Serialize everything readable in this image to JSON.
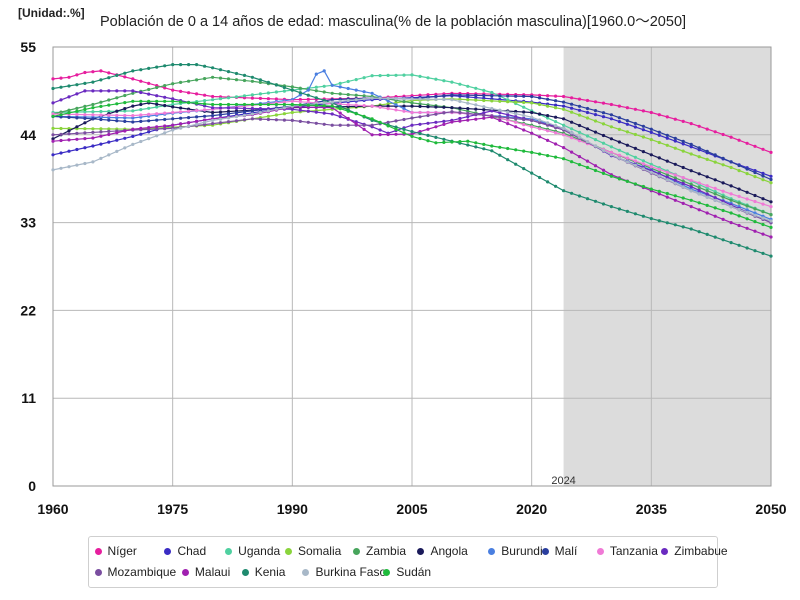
{
  "unit_label": "[Unidad:.%]",
  "title": "Población de 0 a 14 años de edad: masculina(% de la población masculina)[1960.0～2050]",
  "chart_data": {
    "type": "line",
    "xlim": [
      1960,
      2050
    ],
    "ylim": [
      0,
      55
    ],
    "x_ticks": [
      1960,
      1975,
      1990,
      2005,
      2020,
      2035,
      2050
    ],
    "y_ticks": [
      0,
      11,
      22,
      33,
      44,
      55
    ],
    "grid": true,
    "projection_start": 2024,
    "projection_label": "2024",
    "legend_position": "bottom",
    "series": [
      {
        "name": "Níger",
        "color": "#e61e9e",
        "points": [
          [
            1960,
            51
          ],
          [
            1962,
            51.2
          ],
          [
            1964,
            51.8
          ],
          [
            1966,
            52
          ],
          [
            1970,
            51
          ],
          [
            1975,
            49.6
          ],
          [
            1980,
            48.8
          ],
          [
            1990,
            48.4
          ],
          [
            2000,
            48.6
          ],
          [
            2005,
            48.9
          ],
          [
            2010,
            49.2
          ],
          [
            2020,
            49
          ],
          [
            2024,
            48.8
          ],
          [
            2030,
            47.8
          ],
          [
            2035,
            46.8
          ],
          [
            2040,
            45.4
          ],
          [
            2045,
            43.7
          ],
          [
            2050,
            41.8
          ]
        ]
      },
      {
        "name": "Chad",
        "color": "#3a2cc4",
        "points": [
          [
            1960,
            41.5
          ],
          [
            1965,
            42.6
          ],
          [
            1970,
            43.8
          ],
          [
            1975,
            45.2
          ],
          [
            1980,
            46
          ],
          [
            1990,
            47.5
          ],
          [
            2000,
            48.4
          ],
          [
            2010,
            48.9
          ],
          [
            2020,
            48.1
          ],
          [
            2024,
            47.6
          ],
          [
            2030,
            46
          ],
          [
            2035,
            44.3
          ],
          [
            2040,
            42.5
          ],
          [
            2045,
            40.6
          ],
          [
            2050,
            38.8
          ]
        ]
      },
      {
        "name": "Uganda",
        "color": "#4fd0a0",
        "points": [
          [
            1960,
            46.8
          ],
          [
            1970,
            47
          ],
          [
            1975,
            47.8
          ],
          [
            1980,
            48.4
          ],
          [
            1985,
            49
          ],
          [
            1990,
            49.6
          ],
          [
            1995,
            50.2
          ],
          [
            2000,
            51.4
          ],
          [
            2005,
            51.5
          ],
          [
            2010,
            50.6
          ],
          [
            2015,
            49.3
          ],
          [
            2020,
            47
          ],
          [
            2024,
            45.2
          ],
          [
            2030,
            42.5
          ],
          [
            2035,
            40.3
          ],
          [
            2040,
            38.2
          ],
          [
            2045,
            36
          ],
          [
            2050,
            34
          ]
        ]
      },
      {
        "name": "Somalia",
        "color": "#8ad43c",
        "points": [
          [
            1960,
            44.8
          ],
          [
            1970,
            44.7
          ],
          [
            1980,
            45.2
          ],
          [
            1990,
            46.8
          ],
          [
            2000,
            47.6
          ],
          [
            2005,
            48.3
          ],
          [
            2010,
            48.5
          ],
          [
            2020,
            48
          ],
          [
            2024,
            47.2
          ],
          [
            2030,
            45
          ],
          [
            2035,
            43.4
          ],
          [
            2040,
            41.6
          ],
          [
            2045,
            39.9
          ],
          [
            2050,
            38
          ]
        ]
      },
      {
        "name": "Zambia",
        "color": "#47a55c",
        "points": [
          [
            1960,
            46.6
          ],
          [
            1965,
            47.8
          ],
          [
            1970,
            49.2
          ],
          [
            1975,
            50.4
          ],
          [
            1980,
            51.2
          ],
          [
            1985,
            50.7
          ],
          [
            1990,
            50
          ],
          [
            1995,
            49.2
          ],
          [
            2000,
            48.8
          ],
          [
            2005,
            48
          ],
          [
            2010,
            47.4
          ],
          [
            2020,
            45.2
          ],
          [
            2024,
            44.2
          ],
          [
            2030,
            41.8
          ],
          [
            2035,
            39.8
          ],
          [
            2040,
            37.8
          ],
          [
            2045,
            35.8
          ],
          [
            2050,
            34
          ]
        ]
      },
      {
        "name": "Angola",
        "color": "#1a1a5a",
        "points": [
          [
            1960,
            43.5
          ],
          [
            1965,
            46
          ],
          [
            1970,
            47.6
          ],
          [
            1972,
            48
          ],
          [
            1975,
            47.5
          ],
          [
            1980,
            46.8
          ],
          [
            1990,
            47.4
          ],
          [
            2000,
            47.6
          ],
          [
            2005,
            47.6
          ],
          [
            2010,
            47.4
          ],
          [
            2020,
            46.8
          ],
          [
            2024,
            46
          ],
          [
            2030,
            43.5
          ],
          [
            2035,
            41.5
          ],
          [
            2040,
            39.5
          ],
          [
            2045,
            37.6
          ],
          [
            2050,
            35.6
          ]
        ]
      },
      {
        "name": "Burundi",
        "color": "#4a7fe0",
        "points": [
          [
            1960,
            46.3
          ],
          [
            1970,
            46.1
          ],
          [
            1975,
            46.7
          ],
          [
            1980,
            47.2
          ],
          [
            1985,
            47.8
          ],
          [
            1990,
            48.4
          ],
          [
            1992,
            49.6
          ],
          [
            1993,
            51.6
          ],
          [
            1994,
            52
          ],
          [
            1995,
            50.2
          ],
          [
            1998,
            49.6
          ],
          [
            2000,
            49.2
          ],
          [
            2005,
            46.8
          ],
          [
            2010,
            46.8
          ],
          [
            2020,
            46
          ],
          [
            2024,
            44.8
          ],
          [
            2030,
            41.4
          ],
          [
            2035,
            39.6
          ],
          [
            2040,
            37.2
          ],
          [
            2045,
            35.4
          ],
          [
            2050,
            33.4
          ]
        ]
      },
      {
        "name": "Malí",
        "color": "#2a3e9e",
        "points": [
          [
            1960,
            46.3
          ],
          [
            1965,
            46
          ],
          [
            1970,
            45.6
          ],
          [
            1975,
            46
          ],
          [
            1980,
            46.4
          ],
          [
            1990,
            47.6
          ],
          [
            1995,
            48.4
          ],
          [
            2000,
            48.6
          ],
          [
            2005,
            48.5
          ],
          [
            2010,
            49
          ],
          [
            2020,
            48.8
          ],
          [
            2024,
            48.1
          ],
          [
            2030,
            46.5
          ],
          [
            2035,
            44.7
          ],
          [
            2040,
            42.8
          ],
          [
            2045,
            40.6
          ],
          [
            2050,
            38.4
          ]
        ]
      },
      {
        "name": "Tanzania",
        "color": "#f07ad6",
        "points": [
          [
            1960,
            46.6
          ],
          [
            1970,
            46.4
          ],
          [
            1980,
            47.2
          ],
          [
            1990,
            48.2
          ],
          [
            2000,
            47.6
          ],
          [
            2005,
            46.8
          ],
          [
            2010,
            46.8
          ],
          [
            2015,
            46.4
          ],
          [
            2020,
            45
          ],
          [
            2024,
            44
          ],
          [
            2030,
            41.8
          ],
          [
            2035,
            40
          ],
          [
            2040,
            38.3
          ],
          [
            2045,
            36.6
          ],
          [
            2050,
            35
          ]
        ]
      },
      {
        "name": "Zimbabue",
        "color": "#6a2ac0",
        "points": [
          [
            1960,
            48
          ],
          [
            1964,
            49.5
          ],
          [
            1970,
            49.5
          ],
          [
            1975,
            48.5
          ],
          [
            1980,
            47.4
          ],
          [
            1990,
            47.2
          ],
          [
            1995,
            46.6
          ],
          [
            2000,
            45
          ],
          [
            2002,
            44.2
          ],
          [
            2005,
            45.2
          ],
          [
            2010,
            45.8
          ],
          [
            2015,
            47
          ],
          [
            2020,
            45.8
          ],
          [
            2024,
            44.8
          ],
          [
            2030,
            41.4
          ],
          [
            2035,
            39.5
          ],
          [
            2040,
            37.5
          ],
          [
            2045,
            35.2
          ],
          [
            2050,
            33
          ]
        ]
      },
      {
        "name": "Mozambique",
        "color": "#7a4ea0",
        "points": [
          [
            1960,
            44
          ],
          [
            1970,
            44.6
          ],
          [
            1975,
            44.8
          ],
          [
            1980,
            45.4
          ],
          [
            1985,
            46
          ],
          [
            1990,
            45.8
          ],
          [
            1995,
            45.2
          ],
          [
            2000,
            45.2
          ],
          [
            2005,
            46.1
          ],
          [
            2010,
            46.9
          ],
          [
            2020,
            45.8
          ],
          [
            2024,
            44.6
          ],
          [
            2030,
            41.5
          ],
          [
            2035,
            39.2
          ],
          [
            2040,
            37
          ],
          [
            2045,
            35
          ],
          [
            2050,
            33
          ]
        ]
      },
      {
        "name": "Malaui",
        "color": "#a020b0",
        "points": [
          [
            1960,
            43.2
          ],
          [
            1965,
            43.6
          ],
          [
            1970,
            44.7
          ],
          [
            1975,
            45.2
          ],
          [
            1980,
            46
          ],
          [
            1985,
            46.5
          ],
          [
            1990,
            47.5
          ],
          [
            1995,
            47.4
          ],
          [
            2000,
            44
          ],
          [
            2005,
            44.1
          ],
          [
            2010,
            45.6
          ],
          [
            2015,
            46.2
          ],
          [
            2020,
            44.2
          ],
          [
            2024,
            42.4
          ],
          [
            2030,
            39
          ],
          [
            2035,
            37
          ],
          [
            2040,
            35
          ],
          [
            2045,
            33
          ],
          [
            2050,
            31.2
          ]
        ]
      },
      {
        "name": "Kenia",
        "color": "#1e8a6e",
        "points": [
          [
            1960,
            49.8
          ],
          [
            1965,
            50.6
          ],
          [
            1970,
            52
          ],
          [
            1975,
            52.8
          ],
          [
            1978,
            52.8
          ],
          [
            1980,
            52.4
          ],
          [
            1985,
            51.2
          ],
          [
            1990,
            49.6
          ],
          [
            1995,
            48
          ],
          [
            2000,
            45.8
          ],
          [
            2005,
            44.4
          ],
          [
            2010,
            43.2
          ],
          [
            2015,
            42
          ],
          [
            2020,
            39.2
          ],
          [
            2024,
            37
          ],
          [
            2030,
            35
          ],
          [
            2035,
            33.5
          ],
          [
            2040,
            32.2
          ],
          [
            2045,
            30.5
          ],
          [
            2050,
            28.8
          ]
        ]
      },
      {
        "name": "Burkina Faso",
        "color": "#a8b8c8",
        "points": [
          [
            1960,
            39.6
          ],
          [
            1965,
            40.6
          ],
          [
            1970,
            42.8
          ],
          [
            1975,
            44.6
          ],
          [
            1980,
            45.8
          ],
          [
            1985,
            46.6
          ],
          [
            1990,
            47.6
          ],
          [
            2000,
            48.6
          ],
          [
            2010,
            48.4
          ],
          [
            2020,
            46.2
          ],
          [
            2024,
            44.8
          ],
          [
            2030,
            41.5
          ],
          [
            2035,
            39.3
          ],
          [
            2040,
            37
          ],
          [
            2045,
            35
          ],
          [
            2050,
            33.2
          ]
        ]
      },
      {
        "name": "Sudán",
        "color": "#1fba3c",
        "points": [
          [
            1960,
            46.3
          ],
          [
            1965,
            47.4
          ],
          [
            1970,
            48.2
          ],
          [
            1975,
            48.2
          ],
          [
            1980,
            47.8
          ],
          [
            1985,
            47.8
          ],
          [
            1990,
            47.8
          ],
          [
            1995,
            47.6
          ],
          [
            2000,
            46
          ],
          [
            2005,
            43.8
          ],
          [
            2008,
            43
          ],
          [
            2012,
            43.2
          ],
          [
            2015,
            42.6
          ],
          [
            2020,
            41.8
          ],
          [
            2024,
            41
          ],
          [
            2030,
            38.8
          ],
          [
            2035,
            37.2
          ],
          [
            2040,
            35.8
          ],
          [
            2045,
            34.2
          ],
          [
            2050,
            32.4
          ]
        ]
      }
    ]
  }
}
